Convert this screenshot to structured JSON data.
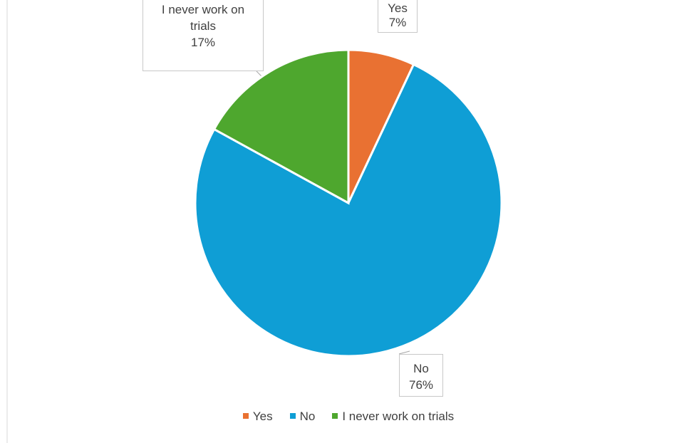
{
  "chart_data": {
    "type": "pie",
    "categories": [
      "Yes",
      "No",
      "I never work on trials"
    ],
    "values": [
      7,
      76,
      17
    ],
    "value_labels": [
      "7%",
      "76%",
      "17%"
    ],
    "colors": [
      "#e97132",
      "#0f9ed5",
      "#4ea72e"
    ],
    "legend": "bottom"
  }
}
